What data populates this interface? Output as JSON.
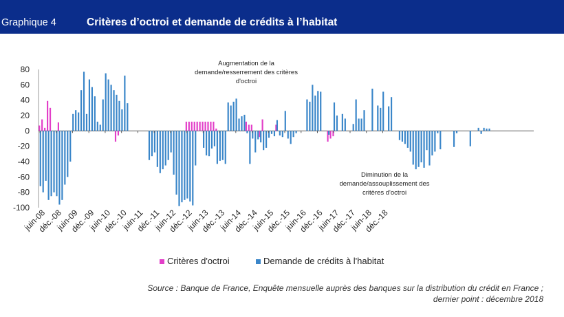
{
  "header": {
    "number": "Graphique 4",
    "title": "Critères d’octroi et demande de crédits à l’habitat"
  },
  "annotations": {
    "top": [
      "Augmentation de la",
      "demande/resserrement des critères",
      "d'octroi"
    ],
    "bottom": [
      "Diminution de la",
      "demande/assouplissement des",
      "critères d'octroi"
    ]
  },
  "legend": {
    "series1": "Critères d'octroi",
    "series2": "Demande de crédits à l'habitat"
  },
  "source": {
    "line1": "Source : Banque de France, Enquête mensuelle auprès des banques sur la distribution du crédit en France ;",
    "line2": "dernier point : décembre 2018"
  },
  "colors": {
    "header_bg": "#0b2d8b",
    "criteria": "#e23ec8",
    "demand": "#3a86c9"
  },
  "chart_data": {
    "type": "bar",
    "start": "juin-08",
    "frequency": "monthly",
    "ylim": [
      -100,
      80
    ],
    "yticks": [
      80,
      60,
      40,
      20,
      0,
      -20,
      -40,
      -60,
      -80,
      -100
    ],
    "xtick_labels": [
      "juin-08",
      "déc.-08",
      "juin-09",
      "déc.-09",
      "juin-10",
      "déc.-10",
      "juin-11",
      "déc.-11",
      "juin-12",
      "déc.-12",
      "juin-13",
      "déc.-13",
      "juin-14",
      "déc.-14",
      "juin-15",
      "déc.-15",
      "juin-16",
      "déc.-16",
      "juin-17",
      "déc.-17",
      "juin-18",
      "déc.-18"
    ],
    "series": [
      {
        "name": "Critères d'octroi",
        "values": [
          7,
          15,
          4,
          39,
          30,
          0,
          0,
          11,
          0,
          0,
          0,
          0,
          0,
          0,
          0,
          0,
          0,
          0,
          0,
          0,
          0,
          0,
          0,
          0,
          0,
          0,
          0,
          0,
          -14,
          -6,
          0,
          0,
          0,
          0,
          0,
          0,
          0,
          0,
          0,
          0,
          0,
          0,
          0,
          0,
          0,
          0,
          0,
          0,
          0,
          0,
          0,
          0,
          0,
          0,
          12,
          12,
          12,
          12,
          12,
          12,
          12,
          12,
          12,
          12,
          12,
          3,
          0,
          0,
          0,
          0,
          0,
          0,
          0,
          0,
          0,
          0,
          12,
          8,
          8,
          0,
          0,
          -8,
          15,
          0,
          0,
          0,
          0,
          8,
          0,
          0,
          0,
          0,
          0,
          0,
          0,
          0,
          0,
          0,
          0,
          0,
          0,
          0,
          0,
          0,
          0,
          0,
          -14,
          -10,
          -7,
          0,
          0,
          0,
          0,
          0,
          0,
          0,
          0,
          0,
          0,
          0,
          0,
          0,
          0,
          0,
          0,
          0,
          0,
          0,
          0,
          0,
          0,
          0,
          0,
          0,
          0,
          0,
          0,
          0,
          0,
          0,
          0,
          0,
          0,
          0,
          0,
          0,
          0,
          0,
          0,
          0,
          0,
          0,
          0,
          0,
          0,
          0,
          0,
          0,
          0,
          0,
          0,
          0,
          0,
          0,
          0,
          0,
          0,
          0,
          0,
          0,
          0,
          0,
          0,
          0,
          0,
          0,
          0,
          0,
          0,
          0,
          0,
          0
        ]
      },
      {
        "name": "Demande de crédits à l'habitat",
        "values": [
          -72,
          -80,
          -65,
          -90,
          -85,
          -80,
          -85,
          -96,
          -90,
          -70,
          -60,
          -40,
          22,
          27,
          24,
          53,
          77,
          22,
          67,
          57,
          45,
          12,
          8,
          41,
          75,
          67,
          60,
          53,
          47,
          39,
          28,
          72,
          36,
          0,
          0,
          0,
          0,
          0,
          0,
          0,
          -38,
          -33,
          -28,
          -47,
          -55,
          -50,
          -45,
          -38,
          -28,
          -57,
          -83,
          -98,
          -93,
          -90,
          -88,
          -92,
          -97,
          -45,
          0,
          0,
          -22,
          -32,
          -33,
          -23,
          -20,
          -43,
          -39,
          -38,
          -43,
          37,
          33,
          38,
          42,
          16,
          19,
          21,
          -3,
          -43,
          -10,
          -28,
          -11,
          -15,
          -25,
          -22,
          -9,
          -4,
          -7,
          14,
          -6,
          -8,
          26,
          -10,
          -17,
          -8,
          -3,
          0,
          0,
          0,
          41,
          38,
          60,
          46,
          52,
          51,
          0,
          0,
          -5,
          0,
          37,
          20,
          0,
          22,
          16,
          0,
          0,
          9,
          41,
          16,
          16,
          27,
          0,
          0,
          55,
          0,
          33,
          30,
          51,
          0,
          32,
          44,
          0,
          0,
          -12,
          -14,
          -17,
          -22,
          -27,
          -44,
          -50,
          -47,
          -41,
          -48,
          -25,
          -45,
          -32,
          -27,
          -3,
          -24,
          0,
          0,
          0,
          0,
          -21,
          -3,
          0,
          0,
          0,
          0,
          -20,
          0,
          0,
          4,
          -4,
          4,
          3,
          3,
          0,
          0,
          0,
          0,
          0,
          0,
          0,
          0,
          0,
          0,
          0,
          0,
          0,
          0,
          0,
          0
        ]
      }
    ]
  }
}
